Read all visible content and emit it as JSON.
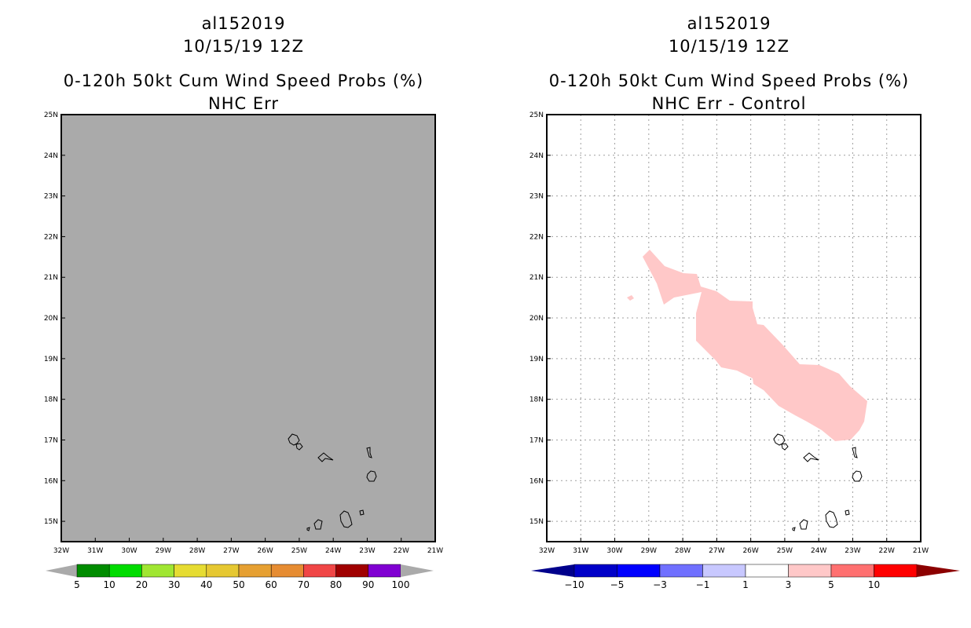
{
  "left_panel": {
    "storm_id": "al152019",
    "datetime": "10/15/19 12Z",
    "product": "0-120h 50kt Cum Wind Speed Probs (%)",
    "subtitle": "NHC Err",
    "background_color": "#aaaaaa",
    "lat_labels": [
      "25N",
      "24N",
      "23N",
      "22N",
      "21N",
      "20N",
      "19N",
      "18N",
      "17N",
      "16N",
      "15N"
    ],
    "lon_labels": [
      "32W",
      "31W",
      "30W",
      "29W",
      "28W",
      "27W",
      "26W",
      "25W",
      "24W",
      "23W",
      "22W",
      "21W"
    ],
    "colorbar": {
      "colors": [
        "#008c00",
        "#00dc00",
        "#a0e632",
        "#e6dc32",
        "#e6c832",
        "#e6a032",
        "#e68c32",
        "#f04646",
        "#a00000",
        "#8000d2"
      ],
      "end_color": "#aaaaaa",
      "labels": [
        "5",
        "10",
        "20",
        "30",
        "40",
        "50",
        "60",
        "70",
        "80",
        "90",
        "100"
      ]
    }
  },
  "right_panel": {
    "storm_id": "al152019",
    "datetime": "10/15/19 12Z",
    "product": "0-120h 50kt Cum Wind Speed Probs (%)",
    "subtitle": "NHC Err - Control",
    "difference_fill_color": "#ffc8c8",
    "lat_labels": [
      "25N",
      "24N",
      "23N",
      "22N",
      "21N",
      "20N",
      "19N",
      "18N",
      "17N",
      "16N",
      "15N"
    ],
    "lon_labels": [
      "32W",
      "31W",
      "30W",
      "29W",
      "28W",
      "27W",
      "26W",
      "25W",
      "24W",
      "23W",
      "22W",
      "21W"
    ],
    "colorbar": {
      "colors": [
        "#0000c8",
        "#0000ff",
        "#7070ff",
        "#c8c8ff",
        "#ffffff",
        "#ffc8c8",
        "#ff7070",
        "#ff0000"
      ],
      "low_end_color": "#00008c",
      "high_end_color": "#8c0000",
      "labels": [
        "-10",
        "-5",
        "-3",
        "-1",
        "1",
        "3",
        "5",
        "10"
      ]
    }
  },
  "map_extent": {
    "lon_min": -32,
    "lon_max": -21,
    "lat_min": 14.5,
    "lat_max": 25
  }
}
